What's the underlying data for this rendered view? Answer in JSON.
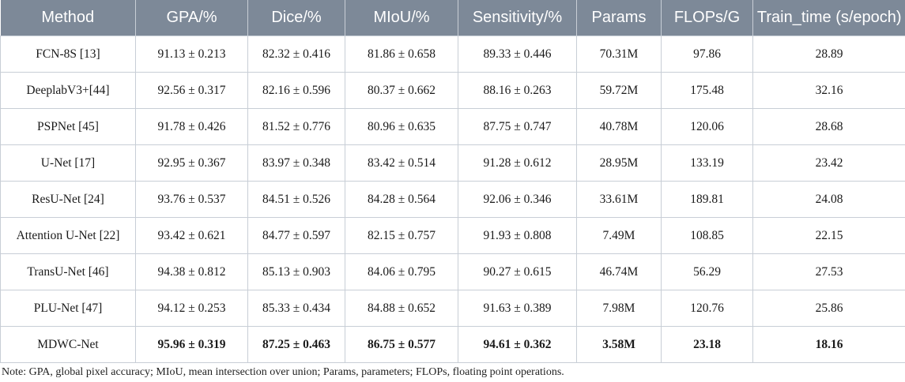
{
  "table": {
    "headers": [
      "Method",
      "GPA/%",
      "Dice/%",
      "MIoU/%",
      "Sensitivity/%",
      "Params",
      "FLOPs/G",
      "Train_time (s/epoch)"
    ],
    "rows": [
      [
        "FCN-8S [13]",
        "91.13 ± 0.213",
        "82.32 ± 0.416",
        "81.86 ± 0.658",
        "89.33 ± 0.446",
        "70.31M",
        "97.86",
        "28.89"
      ],
      [
        "DeeplabV3+[44]",
        "92.56 ± 0.317",
        "82.16 ± 0.596",
        "80.37 ± 0.662",
        "88.16 ± 0.263",
        "59.72M",
        "175.48",
        "32.16"
      ],
      [
        "PSPNet [45]",
        "91.78 ± 0.426",
        "81.52 ± 0.776",
        "80.96 ± 0.635",
        "87.75 ± 0.747",
        "40.78M",
        "120.06",
        "28.68"
      ],
      [
        "U-Net [17]",
        "92.95 ± 0.367",
        "83.97 ± 0.348",
        "83.42 ± 0.514",
        "91.28 ± 0.612",
        "28.95M",
        "133.19",
        "23.42"
      ],
      [
        "ResU-Net [24]",
        "93.76 ± 0.537",
        "84.51 ± 0.526",
        "84.28 ± 0.564",
        "92.06 ± 0.346",
        "33.61M",
        "189.81",
        "24.08"
      ],
      [
        "Attention U-Net [22]",
        "93.42 ± 0.621",
        "84.77 ± 0.597",
        "82.15 ± 0.757",
        "91.93 ± 0.808",
        "7.49M",
        "108.85",
        "22.15"
      ],
      [
        "TransU-Net [46]",
        "94.38 ± 0.812",
        "85.13 ± 0.903",
        "84.06 ± 0.795",
        "90.27 ± 0.615",
        "46.74M",
        "56.29",
        "27.53"
      ],
      [
        "PLU-Net [47]",
        "94.12 ± 0.253",
        "85.33 ± 0.434",
        "84.88 ± 0.652",
        "91.63 ± 0.389",
        "7.98M",
        "120.76",
        "25.86"
      ],
      [
        "MDWC-Net",
        "95.96 ± 0.319",
        "87.25 ± 0.463",
        "86.75 ± 0.577",
        "94.61 ± 0.362",
        "3.58M",
        "23.18",
        "18.16"
      ]
    ],
    "bold_row_index": 8
  },
  "note": "Note: GPA, global pixel accuracy; MIoU, mean intersection over union; Params, parameters; FLOPs, floating point operations.",
  "colors": {
    "header_bg": "#7d8998",
    "header_text": "#ffffff",
    "grid_line": "#c8ced6",
    "body_text": "#1a1a1a"
  }
}
